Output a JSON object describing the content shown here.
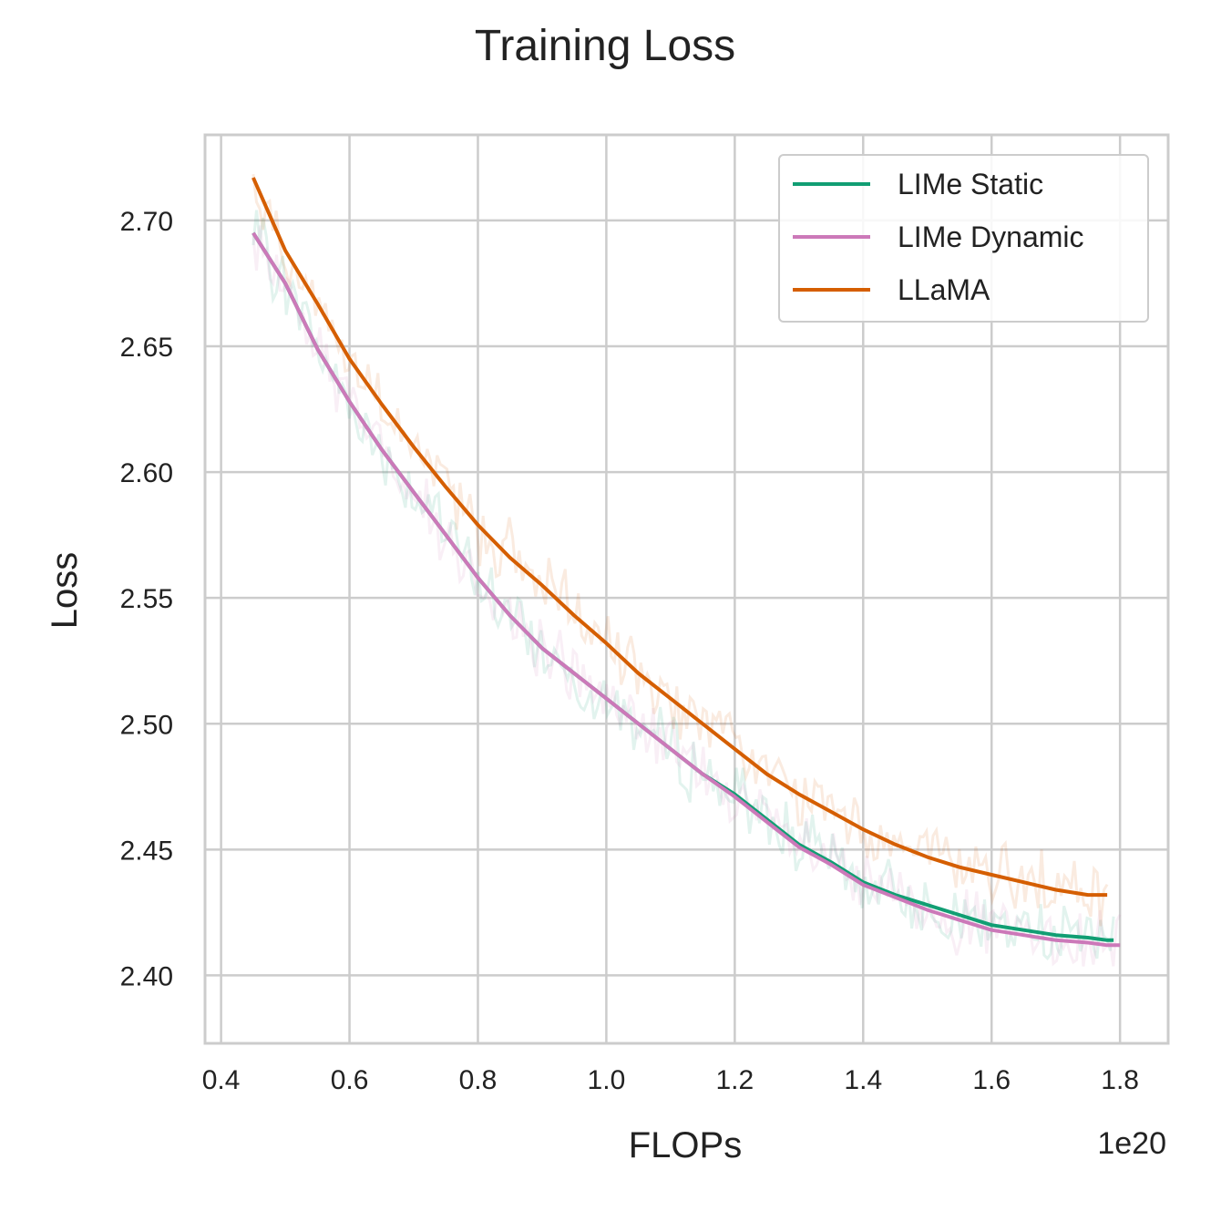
{
  "chart_data": {
    "type": "line",
    "title": "Training Loss",
    "xlabel": "FLOPs",
    "ylabel": "Loss",
    "x_offset_label": "1e20",
    "xlim": [
      0.375,
      1.875
    ],
    "ylim": [
      2.373,
      2.734
    ],
    "xticks": [
      0.4,
      0.6,
      0.8,
      1.0,
      1.2,
      1.4,
      1.6,
      1.8
    ],
    "xtick_labels": [
      "0.4",
      "0.6",
      "0.8",
      "1.0",
      "1.2",
      "1.4",
      "1.6",
      "1.8"
    ],
    "yticks": [
      2.4,
      2.45,
      2.5,
      2.55,
      2.6,
      2.65,
      2.7
    ],
    "ytick_labels": [
      "2.40",
      "2.45",
      "2.50",
      "2.55",
      "2.60",
      "2.65",
      "2.70"
    ],
    "grid": true,
    "legend_position": "top-right",
    "series": [
      {
        "name": "LIMe Static",
        "color": "#119e73",
        "x": [
          0.45,
          0.5,
          0.55,
          0.6,
          0.65,
          0.7,
          0.75,
          0.8,
          0.85,
          0.9,
          0.95,
          1.0,
          1.05,
          1.1,
          1.15,
          1.2,
          1.25,
          1.3,
          1.35,
          1.4,
          1.45,
          1.5,
          1.55,
          1.6,
          1.65,
          1.7,
          1.75,
          1.78,
          1.79
        ],
        "y": [
          2.695,
          2.675,
          2.649,
          2.628,
          2.609,
          2.592,
          2.575,
          2.558,
          2.543,
          2.53,
          2.52,
          2.51,
          2.5,
          2.49,
          2.48,
          2.472,
          2.462,
          2.452,
          2.445,
          2.437,
          2.432,
          2.428,
          2.424,
          2.42,
          2.418,
          2.416,
          2.415,
          2.414,
          2.414
        ]
      },
      {
        "name": "LIMe Dynamic",
        "color": "#cc79b9",
        "x": [
          0.45,
          0.5,
          0.55,
          0.6,
          0.65,
          0.7,
          0.75,
          0.8,
          0.85,
          0.9,
          0.95,
          1.0,
          1.05,
          1.1,
          1.15,
          1.2,
          1.25,
          1.3,
          1.35,
          1.4,
          1.45,
          1.5,
          1.55,
          1.6,
          1.65,
          1.7,
          1.75,
          1.78,
          1.8
        ],
        "y": [
          2.695,
          2.675,
          2.649,
          2.628,
          2.609,
          2.592,
          2.575,
          2.558,
          2.543,
          2.53,
          2.52,
          2.51,
          2.5,
          2.49,
          2.48,
          2.471,
          2.461,
          2.451,
          2.444,
          2.436,
          2.431,
          2.426,
          2.422,
          2.418,
          2.416,
          2.414,
          2.413,
          2.412,
          2.412
        ]
      },
      {
        "name": "LLaMA",
        "color": "#d55e00",
        "x": [
          0.45,
          0.5,
          0.55,
          0.6,
          0.65,
          0.7,
          0.75,
          0.8,
          0.85,
          0.9,
          0.95,
          1.0,
          1.05,
          1.1,
          1.15,
          1.2,
          1.25,
          1.3,
          1.35,
          1.4,
          1.45,
          1.5,
          1.55,
          1.6,
          1.65,
          1.7,
          1.75,
          1.78
        ],
        "y": [
          2.717,
          2.688,
          2.667,
          2.645,
          2.627,
          2.61,
          2.594,
          2.579,
          2.566,
          2.555,
          2.543,
          2.532,
          2.52,
          2.51,
          2.5,
          2.49,
          2.48,
          2.472,
          2.465,
          2.458,
          2.452,
          2.447,
          2.443,
          2.44,
          2.437,
          2.434,
          2.432,
          2.432
        ]
      }
    ]
  }
}
